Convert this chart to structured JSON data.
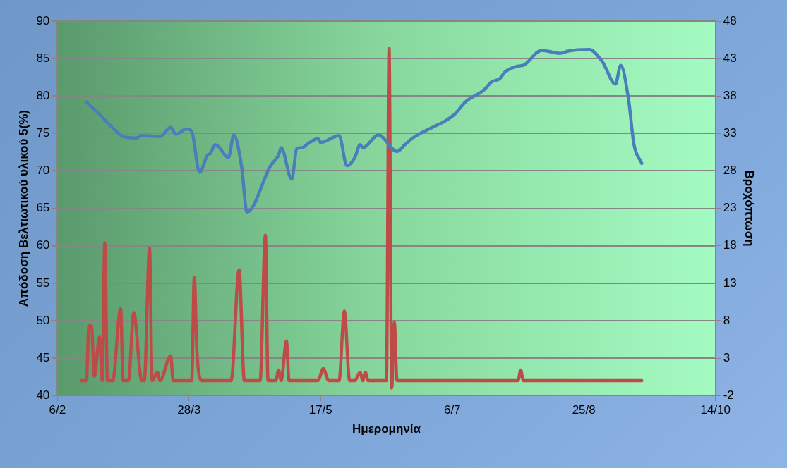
{
  "chart_data": {
    "type": "line",
    "xlabel": "Ημερομηνία",
    "ylabel": "Απόδοση Βελτιωτικού υλικού 5(%)",
    "y2label": "Βροχόπτωση",
    "xlim": [
      "--02-06",
      "--10-14"
    ],
    "xticks": [
      {
        "value": "--02-06",
        "label": "6/2"
      },
      {
        "value": "--03-28",
        "label": "28/3"
      },
      {
        "value": "--05-17",
        "label": "17/5"
      },
      {
        "value": "--07-06",
        "label": "6/7"
      },
      {
        "value": "--08-25",
        "label": "25/8"
      },
      {
        "value": "--10-14",
        "label": "14/10"
      }
    ],
    "ylim": [
      40,
      90
    ],
    "yticks": [
      40,
      45,
      50,
      55,
      60,
      65,
      70,
      75,
      80,
      85,
      90
    ],
    "y2lim": [
      -2,
      48
    ],
    "y2ticks": [
      -2,
      3,
      8,
      13,
      18,
      23,
      28,
      33,
      38,
      43,
      48
    ],
    "grid": "y",
    "legend": false,
    "marker": "none",
    "line_style": "solid",
    "series": [
      {
        "color": "#4a7ebb",
        "x": [
          "--02-17",
          "--02-21",
          "--02-28",
          "--03-03",
          "--03-08",
          "--03-10",
          "--03-17",
          "--03-21",
          "--03-23",
          "--03-27",
          "--03-29",
          "--04-01",
          "--04-04",
          "--04-05",
          "--04-07",
          "--04-12",
          "--04-14",
          "--04-17",
          "--04-19",
          "--04-28",
          "--05-01",
          "--05-02",
          "--05-06",
          "--05-08",
          "--05-10",
          "--05-12",
          "--05-16",
          "--05-17",
          "--05-24",
          "--05-27",
          "--05-30",
          "--06-01",
          "--06-02",
          "--06-08",
          "--06-15",
          "--06-18",
          "--06-21",
          "--06-29",
          "--07-03",
          "--07-07",
          "--07-11",
          "--07-18",
          "--07-21",
          "--07-24",
          "--07-26",
          "--07-31",
          "--08-02",
          "--08-09",
          "--08-16",
          "--08-19",
          "--08-27",
          "--09-01",
          "--09-06",
          "--09-08",
          "--09-11",
          "--09-13",
          "--09-16"
        ],
        "values": [
          79.2,
          77.9,
          75.4,
          74.6,
          74.4,
          74.7,
          74.6,
          75.8,
          74.9,
          75.6,
          75.3,
          69.8,
          72.1,
          72.3,
          73.5,
          71.8,
          74.8,
          70.5,
          64.5,
          70.7,
          72.1,
          73.1,
          68.9,
          73.0,
          73.1,
          73.6,
          74.3,
          73.8,
          74.7,
          70.7,
          71.8,
          73.5,
          73.1,
          74.8,
          72.6,
          73.5,
          74.4,
          75.9,
          76.6,
          77.6,
          79.2,
          80.8,
          81.9,
          82.3,
          83.2,
          84.0,
          84.1,
          86.1,
          85.7,
          86.0,
          86.2,
          84.6,
          81.6,
          84.1,
          79.5,
          73.6,
          71.0
        ]
      },
      {
        "color": "#be4b48",
        "axis": "y2",
        "x": [
          "--02-15",
          "--02-17",
          "--02-18",
          "--02-19",
          "--02-20",
          "--02-22",
          "--02-23",
          "--02-24",
          "--02-25",
          "--02-27",
          "--03-02",
          "--03-03",
          "--03-05",
          "--03-07",
          "--03-10",
          "--03-11",
          "--03-13",
          "--03-14",
          "--03-16",
          "--03-17",
          "--03-21",
          "--03-22",
          "--03-27",
          "--03-29",
          "--03-30",
          "--03-31",
          "--04-02",
          "--04-13",
          "--04-16",
          "--04-18",
          "--04-24",
          "--04-26",
          "--04-27",
          "--04-30",
          "--05-01",
          "--05-02",
          "--05-04",
          "--05-05",
          "--05-16",
          "--05-18",
          "--05-20",
          "--05-24",
          "--05-26",
          "--05-28",
          "--05-30",
          "--06-01",
          "--06-02",
          "--06-03",
          "--06-04",
          "--06-11",
          "--06-12",
          "--06-13",
          "--06-14",
          "--06-15",
          "--07-31",
          "--08-01",
          "--08-02",
          "--09-16"
        ],
        "values": [
          0,
          0,
          7.4,
          7.2,
          0.6,
          5.8,
          0,
          18.4,
          0,
          0,
          9.6,
          0,
          0,
          9.1,
          0,
          0,
          17.7,
          0,
          1.1,
          0,
          3.3,
          0,
          0,
          0,
          13.8,
          3.8,
          0,
          0,
          14.8,
          0,
          0,
          19.4,
          0,
          0,
          1.4,
          0,
          5.3,
          0,
          0,
          1.6,
          0,
          0,
          9.3,
          0,
          0,
          1.1,
          0,
          1.1,
          0,
          0,
          44.4,
          -1,
          7.8,
          0,
          0,
          1.4,
          0,
          0
        ]
      }
    ]
  }
}
